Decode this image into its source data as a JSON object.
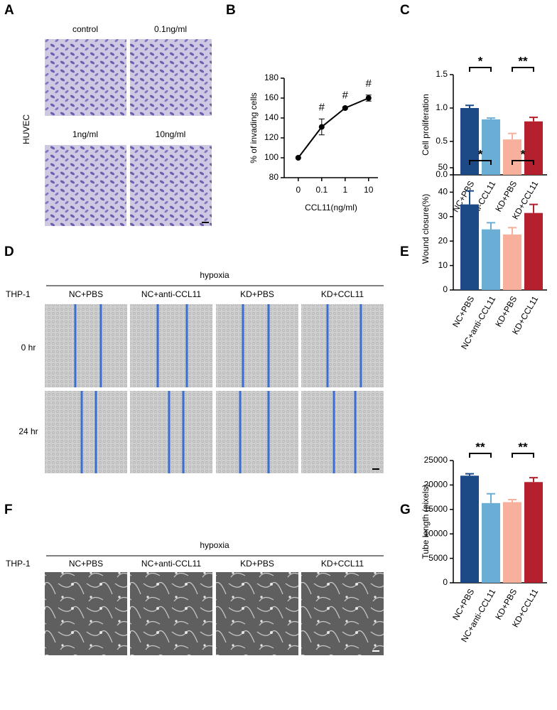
{
  "panels": {
    "A": {
      "label": "A",
      "row_label": "HUVEC",
      "captions": [
        "control",
        "0.1ng/ml",
        "1ng/ml",
        "10ng/ml"
      ]
    },
    "D": {
      "label": "D",
      "group": "hypoxia",
      "row_title": "THP-1",
      "columns": [
        "NC+PBS",
        "NC+anti-CCL11",
        "KD+PBS",
        "KD+CCL11"
      ],
      "rows": [
        "0 hr",
        "24 hr"
      ]
    },
    "F": {
      "label": "F",
      "group": "hypoxia",
      "row_title": "THP-1",
      "columns": [
        "NC+PBS",
        "NC+anti-CCL11",
        "KD+PBS",
        "KD+CCL11"
      ]
    }
  },
  "chart_data": [
    {
      "type": "line",
      "panel_label": "B",
      "categories": [
        "0",
        "0.1",
        "1",
        "10"
      ],
      "values": [
        100,
        131,
        150,
        160
      ],
      "errors": [
        0,
        8,
        1,
        3
      ],
      "point_labels": [
        null,
        "#",
        "#",
        "#"
      ],
      "color": "#000000",
      "ylim": [
        80,
        180
      ],
      "yticks": [
        80,
        100,
        120,
        140,
        160,
        180
      ],
      "xlabel": "CCL11(ng/ml)",
      "ylabel": "% of invading cells"
    },
    {
      "type": "bar",
      "panel_label": "C",
      "categories": [
        "NC+PBS",
        "NC+anti-CCL11",
        "KD+PBS",
        "KD+CCL11"
      ],
      "values": [
        1.0,
        0.83,
        0.53,
        0.8
      ],
      "errors": [
        0.04,
        0.02,
        0.09,
        0.06
      ],
      "colors": [
        "#1b4a86",
        "#6aaed6",
        "#f6b09b",
        "#b5202e"
      ],
      "ylim": [
        0,
        1.5
      ],
      "yticks": [
        {
          "value": 0,
          "label": "0.0"
        },
        0.5,
        {
          "value": 1,
          "label": "1.0"
        },
        1.5
      ],
      "ylabel": "Cell proliferation",
      "significance": [
        "*",
        "**"
      ]
    },
    {
      "type": "bar",
      "panel_label": "E",
      "categories": [
        "NC+PBS",
        "NC+anti-CCL11",
        "KD+PBS",
        "KD+CCL11"
      ],
      "values": [
        35,
        24.8,
        22.7,
        31.5
      ],
      "errors": [
        5.5,
        2.7,
        2.8,
        3.5
      ],
      "colors": [
        "#1b4a86",
        "#6aaed6",
        "#f6b09b",
        "#b5202e"
      ],
      "ylim": [
        0,
        50
      ],
      "yticks": [
        0,
        10,
        20,
        30,
        40,
        50
      ],
      "ylabel": "Wound closure(%)",
      "significance": [
        "*",
        "*"
      ]
    },
    {
      "type": "bar",
      "panel_label": "G",
      "categories": [
        "NC+PBS",
        "NC+anti-CCL11",
        "KD+PBS",
        "KD+CCL11"
      ],
      "values": [
        21900,
        16300,
        16500,
        20600
      ],
      "errors": [
        400,
        1900,
        500,
        900
      ],
      "colors": [
        "#1b4a86",
        "#6aaed6",
        "#f6b09b",
        "#b5202e"
      ],
      "ylim": [
        0,
        25000
      ],
      "yticks": [
        0,
        5000,
        10000,
        15000,
        20000,
        25000
      ],
      "ylabel": "Tube length (pixels)",
      "significance": [
        "**",
        "**"
      ]
    }
  ]
}
